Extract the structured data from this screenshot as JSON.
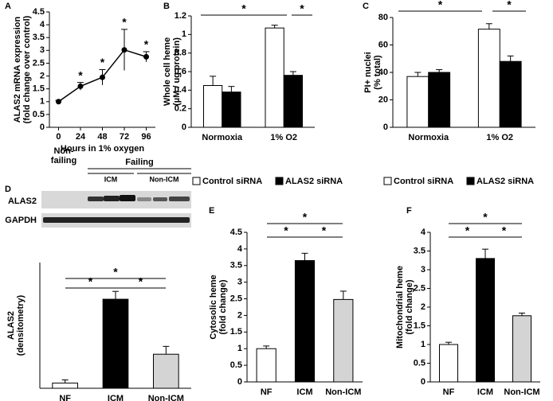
{
  "chart_data": [
    {
      "panel": "A",
      "type": "line",
      "x": [
        0,
        24,
        48,
        72,
        96
      ],
      "values": [
        1,
        1.6,
        1.95,
        3.02,
        2.75
      ],
      "errors": [
        0.05,
        0.15,
        0.3,
        0.8,
        0.2
      ],
      "color": "#000000",
      "xlim": [
        -10,
        106
      ],
      "xticks": [
        0,
        24,
        48,
        72,
        96
      ],
      "ylim": [
        0,
        4.5
      ],
      "yticks": [
        0,
        0.5,
        1,
        1.5,
        2,
        2.5,
        3,
        3.5,
        4,
        4.5
      ],
      "xlabel": "Hours in 1% oxygen",
      "ylabel": [
        "ALAS2 mRNA expression",
        "(fold change over control)"
      ],
      "annotations": [
        "*",
        "*",
        "*",
        "*"
      ]
    },
    {
      "panel": "B",
      "type": "bar",
      "categories": [
        "Normoxia",
        "1% O2"
      ],
      "series": [
        {
          "name": "Control siRNA",
          "color": "#ffffff",
          "values": [
            0.45,
            1.07
          ],
          "errors": [
            0.1,
            0.03
          ]
        },
        {
          "name": "ALAS2 siRNA",
          "color": "#000000",
          "values": [
            0.38,
            0.56
          ],
          "errors": [
            0.06,
            0.04
          ]
        }
      ],
      "ylim": [
        0,
        1.2
      ],
      "yticks": [
        0,
        0.2,
        0.4,
        0.6,
        0.8,
        1,
        1.2
      ],
      "ylabel": [
        "Whole cell heme",
        "(µM / ug protein)"
      ],
      "annotations": [
        "*",
        "*"
      ]
    },
    {
      "panel": "C",
      "type": "bar",
      "categories": [
        "Normoxia",
        "1% O2"
      ],
      "series": [
        {
          "name": "Control siRNA",
          "color": "#ffffff",
          "values": [
            37,
            71.5
          ],
          "errors": [
            3,
            4
          ]
        },
        {
          "name": "ALAS2 siRNA",
          "color": "#000000",
          "values": [
            40,
            48
          ],
          "errors": [
            2,
            4
          ]
        }
      ],
      "ylim": [
        0,
        80
      ],
      "yticks": [
        0,
        20,
        40,
        60,
        80
      ],
      "ylabel": [
        "PI+ nuclei",
        "(% total)"
      ],
      "annotations": [
        "*",
        "*"
      ]
    },
    {
      "panel": "D",
      "type": "bar",
      "blot": {
        "groups": [
          [
            "Non-",
            "failing"
          ],
          [
            "Failing"
          ]
        ],
        "subgroups": [
          "ICM",
          "Non-ICM"
        ],
        "rows": [
          "ALAS2",
          "GAPDH"
        ]
      },
      "categories": [
        "NF",
        "ICM",
        "Non-ICM"
      ],
      "values": [
        1,
        17,
        6.5
      ],
      "errors": [
        0.6,
        1.5,
        1.5
      ],
      "colors": [
        "#ffffff",
        "#000000",
        "#d4d4d4"
      ],
      "ylim": [
        0,
        24
      ],
      "ylabel": [
        "ALAS2",
        "(densitometry)"
      ],
      "annotations": [
        "*",
        "*",
        "*"
      ]
    },
    {
      "panel": "E",
      "type": "bar",
      "categories": [
        "NF",
        "ICM",
        "Non-ICM"
      ],
      "values": [
        1,
        3.65,
        2.48
      ],
      "errors": [
        0.08,
        0.22,
        0.25
      ],
      "colors": [
        "#ffffff",
        "#000000",
        "#d4d4d4"
      ],
      "ylim": [
        0,
        4.5
      ],
      "yticks": [
        0,
        0.5,
        1,
        1.5,
        2,
        2.5,
        3,
        3.5,
        4,
        4.5
      ],
      "ylabel": [
        "Cytosolic heme",
        "(fold change)"
      ],
      "annotations": [
        "*",
        "*",
        "*"
      ]
    },
    {
      "panel": "F",
      "type": "bar",
      "categories": [
        "NF",
        "ICM",
        "Non-ICM"
      ],
      "values": [
        1,
        3.3,
        1.77
      ],
      "errors": [
        0.06,
        0.25,
        0.07
      ],
      "colors": [
        "#ffffff",
        "#000000",
        "#d4d4d4"
      ],
      "ylim": [
        0,
        4
      ],
      "yticks": [
        0,
        0.5,
        1,
        1.5,
        2,
        2.5,
        3,
        3.5,
        4
      ],
      "ylabel": [
        "Mitochondrial heme",
        "(fold change)"
      ],
      "annotations": [
        "*",
        "*",
        "*"
      ]
    }
  ]
}
